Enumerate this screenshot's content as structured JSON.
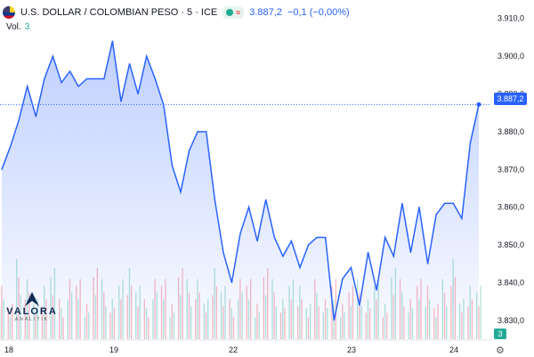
{
  "header": {
    "title": "U.S. DOLLAR / COLOMBIAN PESO · 5 · ICE",
    "last_value": "3.887,2",
    "change": "−0,1 (−0,00%)",
    "volume_label": "Vol.",
    "volume_value": "3"
  },
  "logo": {
    "brand": "VALORA",
    "sub": "ANALITIK"
  },
  "price_tag": "3.887,2",
  "volume_tag": "3",
  "colors": {
    "line": "#2962ff",
    "fill": "#2962ff",
    "vol_up": "#22ab94",
    "vol_down": "#f23645"
  },
  "chart_data": {
    "type": "area",
    "title": "U.S. DOLLAR / COLOMBIAN PESO · 5 · ICE",
    "x_ticks": [
      "18",
      "19",
      "22",
      "23",
      "24"
    ],
    "y_ticks": [
      "3.910,0",
      "3.900,0",
      "3.890,0",
      "3.880,0",
      "3.870,0",
      "3.860,0",
      "3.850,0",
      "3.840,0",
      "3.830,0"
    ],
    "ylim": [
      3825,
      3913
    ],
    "grid": false,
    "series": [
      {
        "name": "",
        "points": [
          [
            "18",
            3870
          ],
          [
            "18",
            3876
          ],
          [
            "18",
            3883
          ],
          [
            "18",
            3892
          ],
          [
            "18",
            3884
          ],
          [
            "18",
            3894
          ],
          [
            "18",
            3900
          ],
          [
            "18",
            3893
          ],
          [
            "18",
            3896
          ],
          [
            "18",
            3892
          ],
          [
            "18",
            3894
          ],
          [
            "19",
            3894
          ],
          [
            "19",
            3894
          ],
          [
            "19",
            3904
          ],
          [
            "19",
            3888
          ],
          [
            "19",
            3898
          ],
          [
            "19",
            3890
          ],
          [
            "19",
            3900
          ],
          [
            "19",
            3894
          ],
          [
            "19",
            3887
          ],
          [
            "19",
            3871
          ],
          [
            "19",
            3864
          ],
          [
            "19",
            3875
          ],
          [
            "22",
            3880
          ],
          [
            "22",
            3880
          ],
          [
            "22",
            3862
          ],
          [
            "22",
            3848
          ],
          [
            "22",
            3840
          ],
          [
            "22",
            3853
          ],
          [
            "22",
            3860
          ],
          [
            "22",
            3851
          ],
          [
            "22",
            3862
          ],
          [
            "22",
            3852
          ],
          [
            "22",
            3847
          ],
          [
            "22",
            3851
          ],
          [
            "22",
            3844
          ],
          [
            "22",
            3850
          ],
          [
            "22",
            3852
          ],
          [
            "23",
            3852
          ],
          [
            "23",
            3830
          ],
          [
            "23",
            3841
          ],
          [
            "23",
            3844
          ],
          [
            "23",
            3834
          ],
          [
            "23",
            3848
          ],
          [
            "23",
            3838
          ],
          [
            "23",
            3852
          ],
          [
            "23",
            3847
          ],
          [
            "23",
            3861
          ],
          [
            "23",
            3848
          ],
          [
            "23",
            3860
          ],
          [
            "23",
            3845
          ],
          [
            "23",
            3858
          ],
          [
            "24",
            3861
          ],
          [
            "24",
            3861
          ],
          [
            "24",
            3857
          ],
          [
            "24",
            3877
          ],
          [
            "24",
            3887.2
          ]
        ]
      }
    ],
    "volume": [
      3,
      2,
      4,
      3,
      2,
      3,
      4,
      2,
      3,
      3,
      2,
      4,
      3,
      2,
      3,
      4,
      3,
      2,
      3,
      3,
      2,
      4,
      3,
      3,
      2,
      4,
      3,
      2,
      3,
      3,
      2,
      4,
      3,
      2,
      3,
      3,
      2,
      3,
      2,
      3,
      2,
      3,
      3,
      2,
      3,
      2,
      4,
      3,
      2,
      3,
      3,
      2,
      3,
      4,
      2,
      3,
      3
    ]
  }
}
